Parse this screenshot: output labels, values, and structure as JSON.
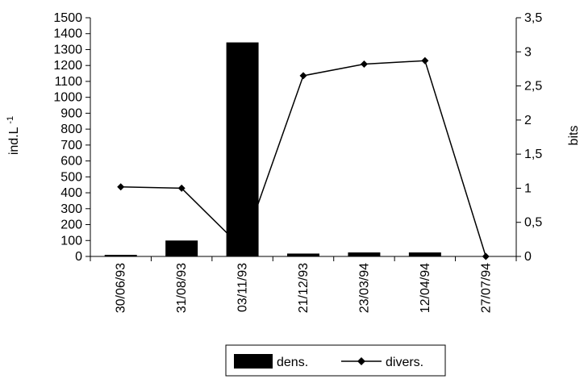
{
  "chart_data": {
    "type": "bar",
    "categories": [
      "30/06/93",
      "31/08/93",
      "03/11/93",
      "21/12/93",
      "23/03/94",
      "12/04/94",
      "27/07/94"
    ],
    "series": [
      {
        "name": "dens.",
        "type": "bar",
        "axis": "left",
        "values": [
          10,
          100,
          1345,
          18,
          25,
          25,
          0
        ]
      },
      {
        "name": "divers.",
        "type": "line",
        "axis": "right",
        "marker": "diamond",
        "values": [
          1.02,
          1.0,
          0.12,
          2.65,
          2.82,
          2.87,
          0.0
        ]
      }
    ],
    "ylabel": "ind.L-1",
    "ylim": [
      0,
      1500
    ],
    "yticks": [
      "0",
      "100",
      "200",
      "300",
      "400",
      "500",
      "600",
      "700",
      "800",
      "900",
      "1000",
      "1100",
      "1200",
      "1300",
      "1400",
      "1500"
    ],
    "y2label": "bits",
    "y2lim": [
      0,
      3.5
    ],
    "y2ticks": [
      "0",
      "0,5",
      "1",
      "1,5",
      "2",
      "2,5",
      "3",
      "3,5"
    ],
    "grid": false,
    "legend": "bottom",
    "colors": {
      "bar": "#000000",
      "line": "#000000"
    }
  }
}
